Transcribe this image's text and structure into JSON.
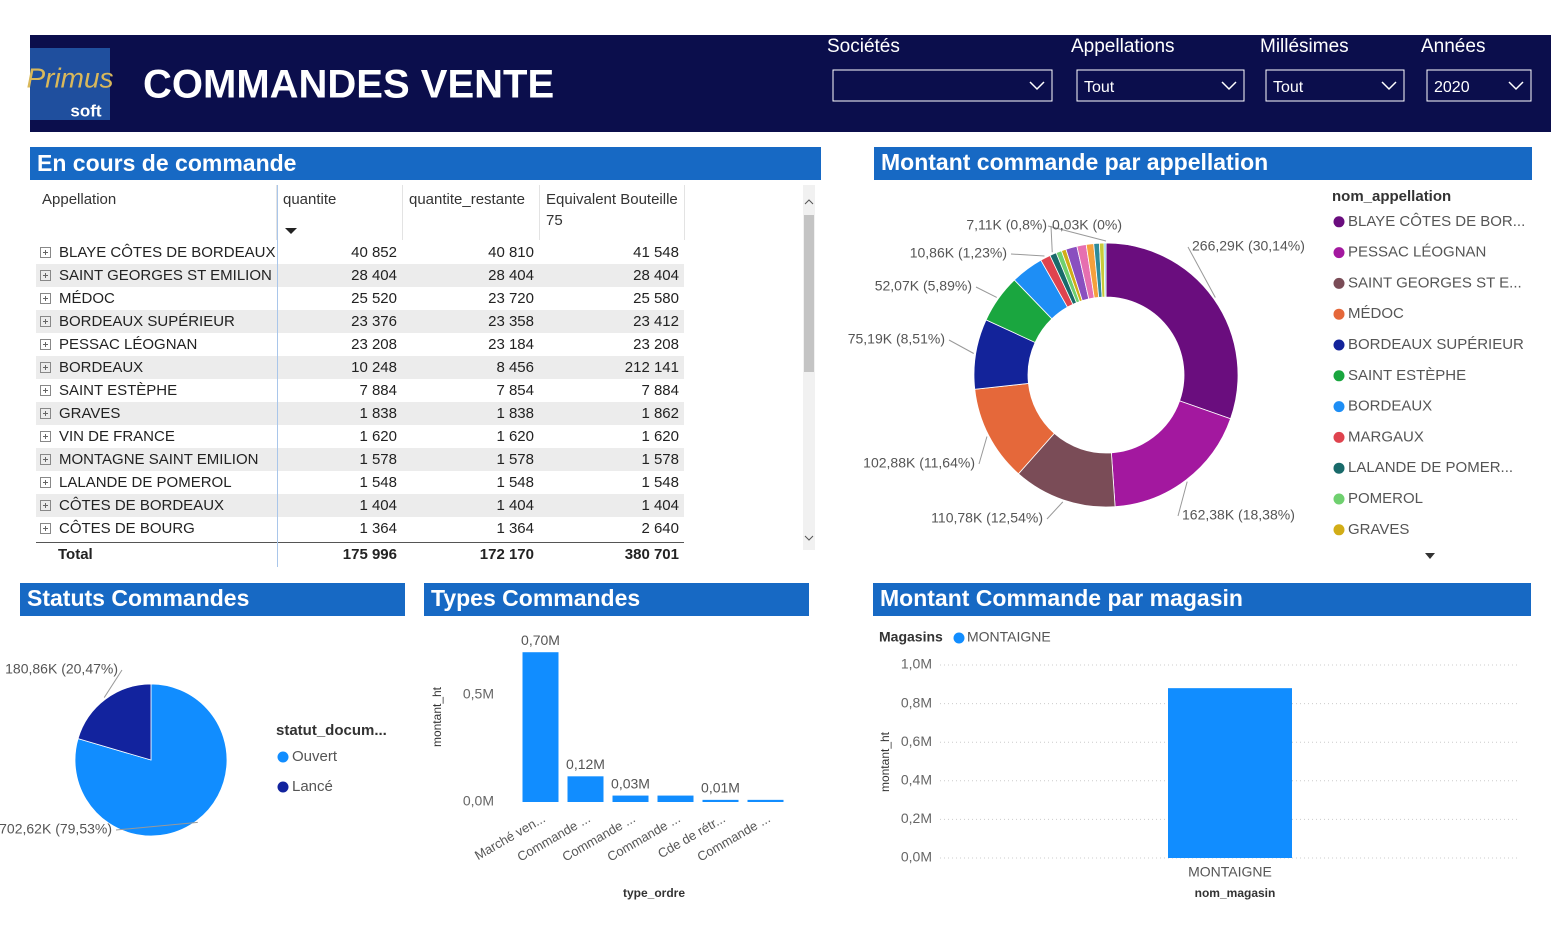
{
  "header": {
    "title": "COMMANDES VENTE",
    "logo_script": "Primus",
    "logo_text": "soft"
  },
  "filters": [
    {
      "label": "Sociétés"
    },
    {
      "label": "Appellations",
      "value": "Tout"
    },
    {
      "label": "Millésimes",
      "value": "Tout"
    },
    {
      "label": "Années",
      "value": "2020"
    }
  ],
  "table": {
    "title": "En cours de commande",
    "columns": [
      "Appellation",
      "quantite",
      "quantite_restante",
      "Equivalent Bouteille 75"
    ],
    "rows": [
      [
        "BLAYE CÔTES DE BORDEAUX",
        "40 852",
        "40 810",
        "41 548"
      ],
      [
        "SAINT GEORGES ST EMILION",
        "28 404",
        "28 404",
        "28 404"
      ],
      [
        "MÉDOC",
        "25 520",
        "23 720",
        "25 580"
      ],
      [
        "BORDEAUX SUPÉRIEUR",
        "23 376",
        "23 358",
        "23 412"
      ],
      [
        "PESSAC LÉOGNAN",
        "23 208",
        "23 184",
        "23 208"
      ],
      [
        "BORDEAUX",
        "10 248",
        "8 456",
        "212 141"
      ],
      [
        "SAINT ESTÈPHE",
        "7 884",
        "7 854",
        "7 884"
      ],
      [
        "GRAVES",
        "1 838",
        "1 838",
        "1 862"
      ],
      [
        "VIN DE FRANCE",
        "1 620",
        "1 620",
        "1 620"
      ],
      [
        "MONTAGNE SAINT EMILION",
        "1 578",
        "1 578",
        "1 578"
      ],
      [
        "LALANDE DE POMEROL",
        "1 548",
        "1 548",
        "1 548"
      ],
      [
        "CÔTES DE BORDEAUX",
        "1 404",
        "1 404",
        "1 404"
      ],
      [
        "CÔTES DE BOURG",
        "1 364",
        "1 364",
        "2 640"
      ]
    ],
    "total": [
      "Total",
      "175 996",
      "172 170",
      "380 701"
    ]
  },
  "chart_data": [
    {
      "type": "donut",
      "title": "Montant commande par appellation",
      "legend_title": "nom_appellation",
      "categories": [
        "BLAYE CÔTES DE BOR...",
        "PESSAC LÉOGNAN",
        "SAINT GEORGES ST E...",
        "MÉDOC",
        "BORDEAUX SUPÉRIEUR",
        "SAINT ESTÈPHE",
        "BORDEAUX",
        "MARGAUX",
        "LALANDE DE POMER...",
        "POMEROL",
        "GRAVES",
        null,
        null,
        null,
        null,
        null,
        null,
        null
      ],
      "values": [
        266.29,
        162.38,
        110.78,
        102.88,
        75.19,
        52.07,
        35,
        10.86,
        7.11,
        6,
        5,
        12,
        10,
        8,
        6,
        5,
        2,
        0.03
      ],
      "value_labels": [
        "266,29K (30,14%)",
        "162,38K (18,38%)",
        "110,78K (12,54%)",
        "102,88K (11,64%)",
        "75,19K (8,51%)",
        "52,07K (5,89%)",
        null,
        "10,86K (1,23%)",
        "7,11K (0,8%)",
        null,
        null,
        null,
        null,
        null,
        null,
        null,
        null,
        "0,03K (0%)"
      ],
      "colors": [
        "#6a0d7e",
        "#a3189f",
        "#7a4c57",
        "#e5683a",
        "#13239a",
        "#1aa63f",
        "#1e8ef5",
        "#df434e",
        "#196a6a",
        "#6fd06f",
        "#d2ad17",
        "#8a4fbf",
        "#e66fb0",
        "#f5a03c",
        "#2e8b9a",
        "#c9c93a",
        "#5bc0de",
        "#c87a5a"
      ]
    },
    {
      "type": "pie",
      "title": "Statuts Commandes",
      "legend_title": "statut_docum...",
      "categories": [
        "Ouvert",
        "Lancé"
      ],
      "values": [
        702.62,
        180.86
      ],
      "value_labels": [
        "702,62K (79,53%)",
        "180,86K (20,47%)"
      ],
      "colors": [
        "#118dff",
        "#12239e"
      ]
    },
    {
      "type": "bar",
      "title": "Types Commandes",
      "x_label": "type_ordre",
      "y_label": "montant_ht",
      "categories": [
        "Marché ven...",
        "Commande ...",
        "Commande ...",
        "Commande ...",
        "Cde de rétr...",
        "Commande ..."
      ],
      "values": [
        0.7,
        0.12,
        0.03,
        0.03,
        0.01,
        0.01
      ],
      "value_labels": [
        "0,70M",
        "0,12M",
        "0,03M",
        null,
        "0,01M",
        null
      ],
      "color": "#118dff",
      "ylim": [
        0,
        0.73
      ],
      "yticks": [
        {
          "value": 0,
          "label": "0,0M"
        },
        {
          "value": 0.5,
          "label": "0,5M"
        }
      ],
      "grid": false
    },
    {
      "type": "bar",
      "title": "Montant Commande par magasin",
      "x_label": "nom_magasin",
      "y_label": "montant_ht",
      "legend_title": "Magasins",
      "categories": [
        "MONTAIGNE"
      ],
      "series": [
        {
          "name": "MONTAIGNE",
          "color": "#118dff",
          "values": [
            0.88
          ]
        }
      ],
      "ylim": [
        0,
        1.0
      ],
      "yticks": [
        {
          "value": 0,
          "label": "0,0M"
        },
        {
          "value": 0.2,
          "label": "0,2M"
        },
        {
          "value": 0.4,
          "label": "0,4M"
        },
        {
          "value": 0.6,
          "label": "0,6M"
        },
        {
          "value": 0.8,
          "label": "0,8M"
        },
        {
          "value": 1.0,
          "label": "1,0M"
        }
      ],
      "grid": true
    }
  ]
}
